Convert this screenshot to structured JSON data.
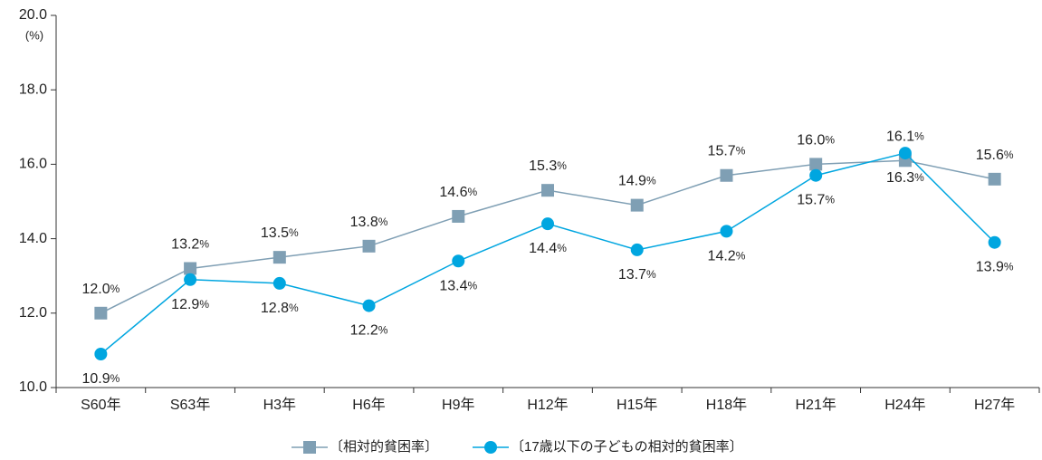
{
  "chart_data": {
    "type": "line",
    "y_unit": "(%)",
    "categories": [
      "S60年",
      "S63年",
      "H3年",
      "H6年",
      "H9年",
      "H12年",
      "H15年",
      "H18年",
      "H21年",
      "H24年",
      "H27年"
    ],
    "series": [
      {
        "name": "〔相対的貧困率〕",
        "color": "#7f9fb4",
        "marker": "square",
        "values": [
          12.0,
          13.2,
          13.5,
          13.8,
          14.6,
          15.3,
          14.9,
          15.7,
          16.0,
          16.1,
          15.6
        ],
        "value_labels": [
          "12.0%",
          "13.2%",
          "13.5%",
          "13.8%",
          "14.6%",
          "15.3%",
          "14.9%",
          "15.7%",
          "16.0%",
          "16.1%",
          "15.6%"
        ]
      },
      {
        "name": "〔17歳以下の子どもの相対的貧困率〕",
        "color": "#00a6e0",
        "marker": "circle",
        "values": [
          10.9,
          12.9,
          12.8,
          12.2,
          13.4,
          14.4,
          13.7,
          14.2,
          15.7,
          16.3,
          13.9
        ],
        "value_labels": [
          "10.9%",
          "12.9%",
          "12.8%",
          "12.2%",
          "13.4%",
          "14.4%",
          "13.7%",
          "14.2%",
          "15.7%",
          "16.3%",
          "13.9%"
        ]
      }
    ],
    "ylim": [
      10,
      20
    ],
    "yticks": [
      {
        "value": 10,
        "label": "10.0"
      },
      {
        "value": 12,
        "label": "12.0"
      },
      {
        "value": 14,
        "label": "14.0"
      },
      {
        "value": 16,
        "label": "16.0"
      },
      {
        "value": 18,
        "label": "18.0"
      },
      {
        "value": 20,
        "label": "20.0"
      }
    ],
    "grid": false,
    "legend": "bottom"
  }
}
